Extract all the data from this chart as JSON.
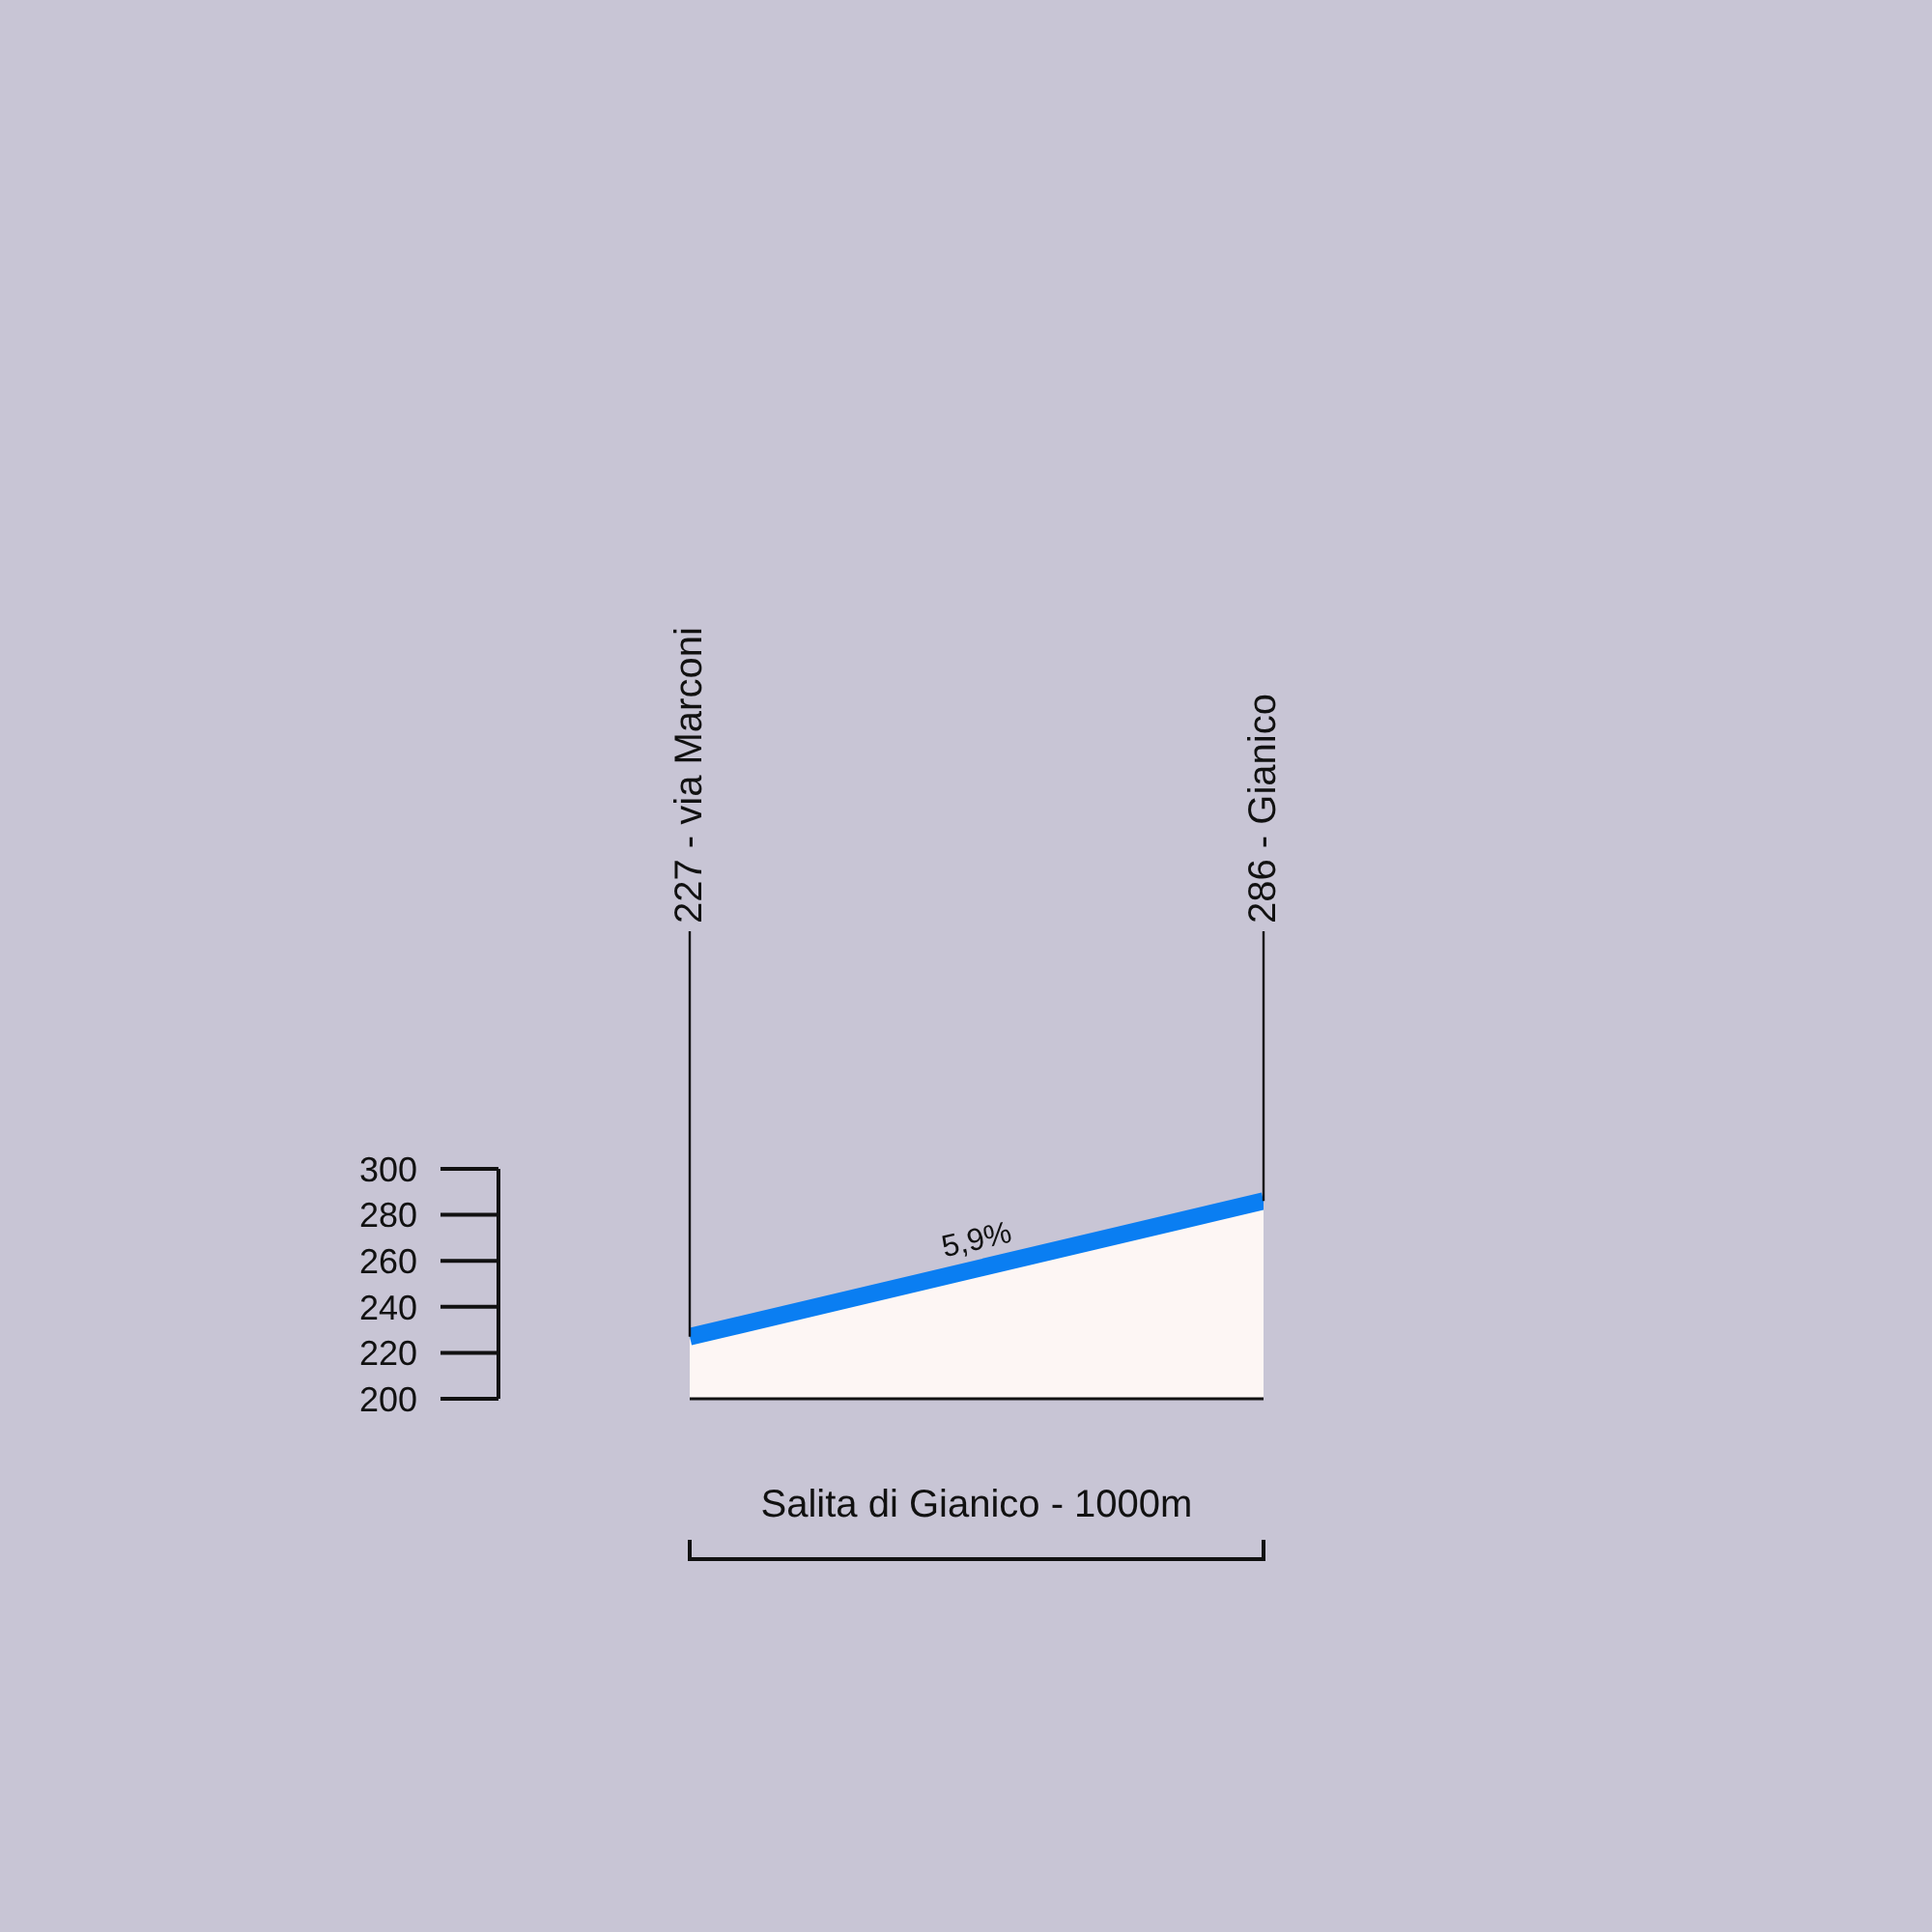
{
  "chart_data": {
    "type": "area",
    "xlabel": "Salita di Gianico - 1000m",
    "categories": [
      null,
      null
    ],
    "values": [
      227,
      286
    ],
    "color": "#0a7ef2",
    "ylim": [
      200,
      300
    ],
    "yticks": [
      200,
      220,
      240,
      260,
      280,
      300
    ],
    "annotations": [
      "227 - via Marconi",
      "286 - Gianico",
      "5,9%"
    ]
  }
}
